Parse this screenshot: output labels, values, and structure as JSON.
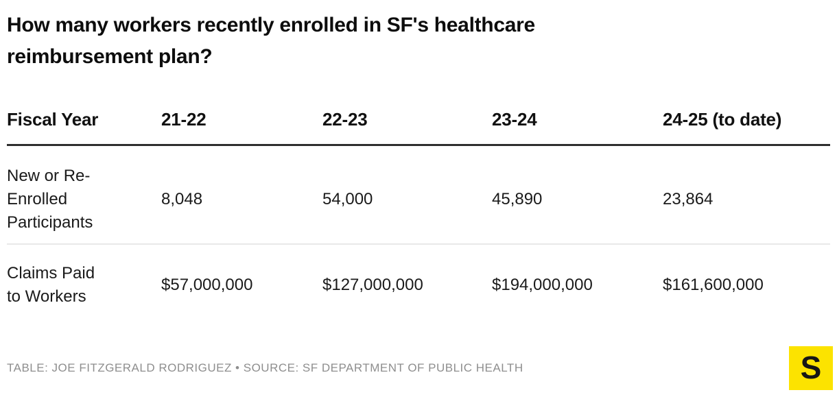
{
  "title": "How many workers recently enrolled in SF's healthcare\nreimbursement plan?",
  "table": {
    "columns": [
      "Fiscal Year",
      "21-22",
      "22-23",
      "23-24",
      "24-25 (to date)"
    ],
    "rows": [
      {
        "label": "New or Re-\nEnrolled\nParticipants",
        "values": [
          "8,048",
          "54,000",
          "45,890",
          "23,864"
        ]
      },
      {
        "label": "Claims Paid\nto Workers",
        "values": [
          "$57,000,000",
          "$127,000,000",
          "$194,000,000",
          "$161,600,000"
        ]
      }
    ]
  },
  "footer": {
    "credit": "TABLE: JOE FITZGERALD RODRIGUEZ • SOURCE: SF DEPARTMENT OF PUBLIC HEALTH",
    "logo_letter": "S"
  },
  "colors": {
    "logo_background": "#FCE300",
    "logo_letter": "#161616",
    "header_rule": "#2e2e2e",
    "row_divider": "#e8e8e8",
    "credit_text": "#8e8e8e",
    "title_text": "#0d0d0d",
    "body_text": "#1a1a1a"
  },
  "chart_data": {
    "type": "table",
    "title": "How many workers recently enrolled in SF's healthcare reimbursement plan?",
    "columns": [
      "Fiscal Year",
      "21-22",
      "22-23",
      "23-24",
      "24-25 (to date)"
    ],
    "rows": [
      {
        "label": "New or Re-Enrolled Participants",
        "values": [
          8048,
          54000,
          45890,
          23864
        ]
      },
      {
        "label": "Claims Paid to Workers",
        "values": [
          57000000,
          127000000,
          194000000,
          161600000
        ],
        "format": "USD"
      }
    ],
    "credit": "TABLE: JOE FITZGERALD RODRIGUEZ",
    "source": "SOURCE: SF DEPARTMENT OF PUBLIC HEALTH",
    "legend_position": "none",
    "grid": "off"
  }
}
